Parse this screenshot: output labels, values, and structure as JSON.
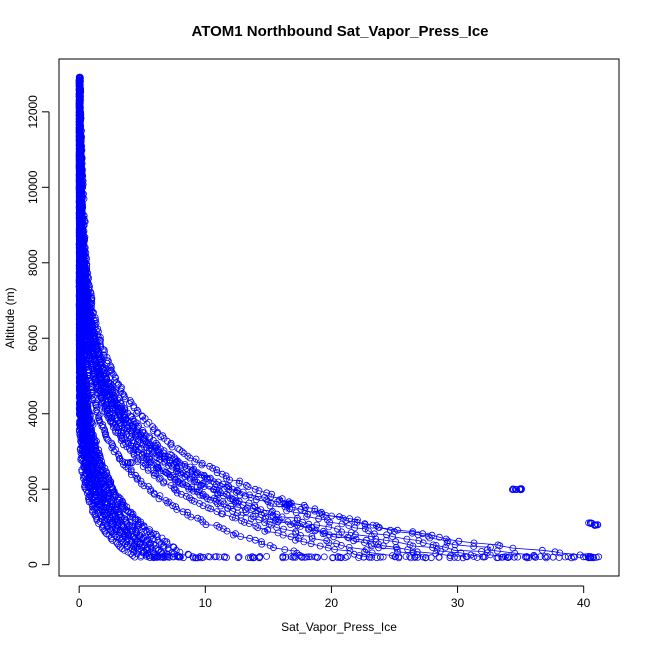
{
  "chart_data": {
    "type": "scatter",
    "title": "ATOM1 Northbound Sat_Vapor_Press_Ice",
    "xlabel": "Sat_Vapor_Press_Ice",
    "ylabel": "Altitude (m)",
    "xlim": [
      -1.6,
      42.8
    ],
    "ylim": [
      -300,
      13400
    ],
    "x_ticks": [
      0,
      10,
      20,
      30,
      40
    ],
    "x_tick_labels": [
      "0",
      "10",
      "20",
      "30",
      "40"
    ],
    "y_ticks": [
      0,
      2000,
      4000,
      6000,
      8000,
      10000,
      12000
    ],
    "y_tick_labels": [
      "0",
      "2000",
      "4000",
      "6000",
      "8000",
      "10000",
      "12000"
    ],
    "grid": false,
    "legend": "none",
    "marker": "open-circle",
    "series_color": "#0000ff",
    "profile_endpoints_at_200m": [
      5.5,
      6.5,
      7.5,
      9.0,
      18.5,
      23.0,
      25.0,
      27.5,
      30.0,
      32.0,
      34.0,
      36.5,
      41.0
    ],
    "upper_cluster": {
      "x": [
        0.0,
        0.5
      ],
      "y": [
        9000,
        12900
      ]
    },
    "high_altitude_points": [
      {
        "x": 0.1,
        "y": 12900
      },
      {
        "x": 0.1,
        "y": 12600
      },
      {
        "x": 0.1,
        "y": 12300
      },
      {
        "x": 0.1,
        "y": 12000
      },
      {
        "x": 0.12,
        "y": 11600
      },
      {
        "x": 0.15,
        "y": 11200
      },
      {
        "x": 0.18,
        "y": 10800
      },
      {
        "x": 0.22,
        "y": 10400
      },
      {
        "x": 0.28,
        "y": 10000
      }
    ],
    "dense_band_points": [
      {
        "x": 34.5,
        "y": 2000
      },
      {
        "x": 35.0,
        "y": 2000
      },
      {
        "x": 40.5,
        "y": 1100
      },
      {
        "x": 41.0,
        "y": 1050
      },
      {
        "x": 16.5,
        "y": 1600
      },
      {
        "x": 4.0,
        "y": 2700
      }
    ]
  }
}
